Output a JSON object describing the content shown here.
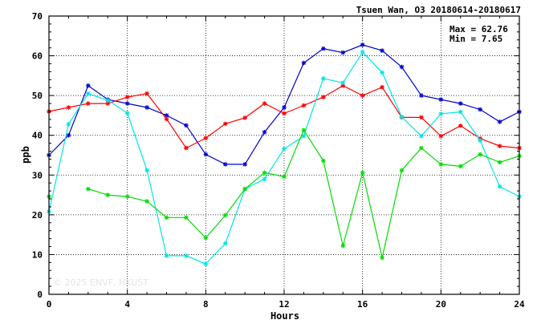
{
  "chart_data": {
    "type": "line",
    "title": "Tsuen Wan, O3 20180614-20180617",
    "xlabel": "Hours",
    "ylabel": "ppb",
    "xlim": [
      0,
      24
    ],
    "ylim": [
      0,
      70
    ],
    "xticks": [
      0,
      4,
      8,
      12,
      16,
      20,
      24
    ],
    "yticks": [
      0,
      10,
      20,
      30,
      40,
      50,
      60,
      70
    ],
    "grid": true,
    "stats": {
      "max": "Max = 62.76",
      "min": "Min =  7.65"
    },
    "watermark": "© 2025  ENVF, HKUST",
    "x": [
      0,
      1,
      2,
      3,
      4,
      5,
      6,
      7,
      8,
      9,
      10,
      11,
      12,
      13,
      14,
      15,
      16,
      17,
      18,
      19,
      20,
      21,
      22,
      23,
      24
    ],
    "series": [
      {
        "color": "#0000cc",
        "values": [
          35,
          40,
          52.5,
          49,
          48,
          47,
          45,
          42.5,
          35.2,
          32.7,
          32.7,
          40.8,
          47,
          58.2,
          61.8,
          60.8,
          62.76,
          61.3,
          57.2,
          50,
          49,
          48,
          46.5,
          43.4,
          45.9
        ]
      },
      {
        "color": "#ff0000",
        "values": [
          46,
          47,
          48,
          48,
          49.6,
          50.5,
          44.1,
          36.8,
          39.3,
          42.9,
          44.4,
          48,
          45.5,
          47.5,
          49.6,
          52.5,
          50,
          52.1,
          44.5,
          44.5,
          39.8,
          42.4,
          39.2,
          37.3,
          36.8
        ]
      },
      {
        "color": "#00e5e5",
        "values": [
          20.8,
          42.8,
          50.5,
          48.8,
          45.6,
          31.2,
          9.7,
          9.7,
          7.65,
          12.8,
          26.5,
          29,
          36.6,
          39.8,
          54.3,
          53.2,
          60.9,
          55.8,
          44.6,
          39.8,
          45.4,
          45.9,
          38.7,
          27.1,
          24.6
        ]
      },
      {
        "color": "#00dd00",
        "values": [
          24.6,
          null,
          26.5,
          25,
          24.6,
          23.4,
          19.3,
          19.3,
          14.2,
          19.9,
          26.5,
          30.6,
          29.6,
          41.3,
          33.6,
          12.2,
          30.6,
          9.2,
          31.2,
          36.8,
          32.7,
          32.2,
          35.2,
          33.2,
          34.8
        ]
      }
    ]
  }
}
